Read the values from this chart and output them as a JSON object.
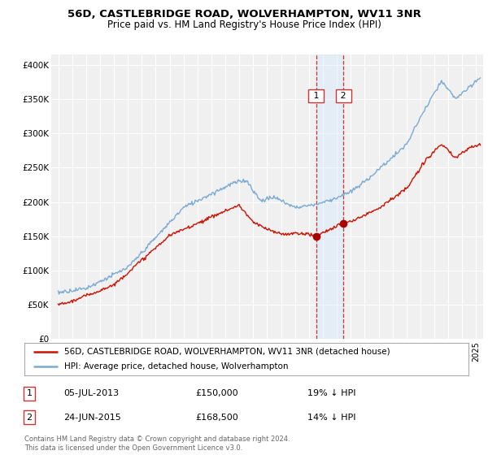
{
  "title": "56D, CASTLEBRIDGE ROAD, WOLVERHAMPTON, WV11 3NR",
  "subtitle": "Price paid vs. HM Land Registry's House Price Index (HPI)",
  "ylabel_ticks": [
    "£0",
    "£50K",
    "£100K",
    "£150K",
    "£200K",
    "£250K",
    "£300K",
    "£350K",
    "£400K"
  ],
  "ytick_values": [
    0,
    50000,
    100000,
    150000,
    200000,
    250000,
    300000,
    350000,
    400000
  ],
  "ylim": [
    0,
    415000
  ],
  "xlim_start": 1994.5,
  "xlim_end": 2025.5,
  "hpi_color": "#7aaad4",
  "price_color": "#cc1100",
  "marker_color": "#aa0000",
  "purchase1_date": 2013.51,
  "purchase1_price": 150000,
  "purchase1_label": "1",
  "purchase2_date": 2015.48,
  "purchase2_price": 168500,
  "purchase2_label": "2",
  "legend_line1": "56D, CASTLEBRIDGE ROAD, WOLVERHAMPTON, WV11 3NR (detached house)",
  "legend_line2": "HPI: Average price, detached house, Wolverhampton",
  "annotation1_date": "05-JUL-2013",
  "annotation1_price": "£150,000",
  "annotation1_hpi": "19% ↓ HPI",
  "annotation2_date": "24-JUN-2015",
  "annotation2_price": "£168,500",
  "annotation2_hpi": "14% ↓ HPI",
  "footer": "Contains HM Land Registry data © Crown copyright and database right 2024.\nThis data is licensed under the Open Government Licence v3.0.",
  "bg_color": "#ffffff",
  "plot_bg_color": "#f0f0f0",
  "grid_color": "#ffffff",
  "shade_color": "#d0e8ff"
}
